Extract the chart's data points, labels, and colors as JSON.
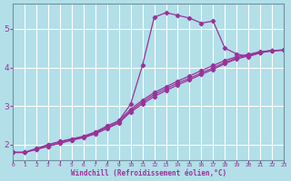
{
  "xlabel": "Windchill (Refroidissement éolien,°C)",
  "bg_color": "#b2dfe8",
  "grid_color": "#ffffff",
  "line_color": "#993399",
  "xlim": [
    0,
    23
  ],
  "ylim": [
    1.6,
    5.65
  ],
  "xticks": [
    0,
    1,
    2,
    3,
    4,
    5,
    6,
    7,
    8,
    9,
    10,
    11,
    12,
    13,
    14,
    15,
    16,
    17,
    18,
    19,
    20,
    21,
    22,
    23
  ],
  "yticks": [
    2,
    3,
    4,
    5
  ],
  "lines": [
    [
      1.8,
      1.8,
      1.9,
      2.0,
      2.08,
      2.15,
      2.2,
      2.32,
      2.48,
      2.62,
      3.05,
      4.05,
      5.3,
      5.42,
      5.35,
      5.28,
      5.15,
      5.2,
      4.5,
      4.35,
      4.28,
      4.38,
      4.44,
      4.45
    ],
    [
      1.8,
      1.8,
      1.88,
      1.96,
      2.04,
      2.12,
      2.18,
      2.28,
      2.42,
      2.56,
      2.85,
      3.05,
      3.25,
      3.4,
      3.55,
      3.68,
      3.82,
      3.95,
      4.1,
      4.22,
      4.3,
      4.38,
      4.43,
      4.45
    ],
    [
      1.8,
      1.8,
      1.88,
      1.96,
      2.04,
      2.12,
      2.2,
      2.3,
      2.44,
      2.58,
      2.88,
      3.1,
      3.3,
      3.45,
      3.6,
      3.72,
      3.86,
      3.99,
      4.13,
      4.25,
      4.32,
      4.4,
      4.44,
      4.45
    ],
    [
      1.8,
      1.8,
      1.9,
      2.0,
      2.08,
      2.15,
      2.22,
      2.33,
      2.48,
      2.62,
      2.92,
      3.15,
      3.35,
      3.5,
      3.65,
      3.78,
      3.92,
      4.05,
      4.18,
      4.28,
      4.34,
      4.41,
      4.44,
      4.45
    ]
  ],
  "marker": "D",
  "markersize": 2.2,
  "linewidth": 0.9
}
